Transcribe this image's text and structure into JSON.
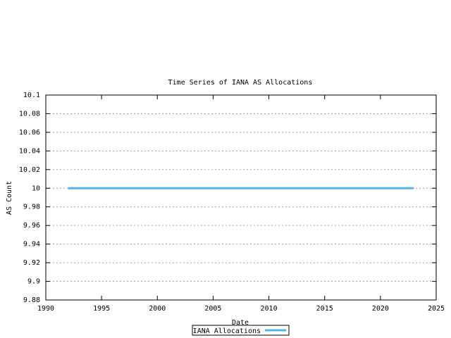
{
  "chart_data": {
    "type": "line",
    "title": "Time Series of IANA AS Allocations",
    "xlabel": "Date",
    "ylabel": "AS Count",
    "x": [
      1992,
      2023
    ],
    "series": [
      {
        "name": "IANA Allocations",
        "color": "#56b4e9",
        "values": [
          10,
          10
        ]
      }
    ],
    "xlim": [
      1990,
      2025
    ],
    "xticks": [
      1990,
      1995,
      2000,
      2005,
      2010,
      2015,
      2020,
      2025
    ],
    "ylim": [
      9.88,
      10.1
    ],
    "yticks": [
      9.88,
      9.9,
      9.92,
      9.94,
      9.96,
      9.98,
      10,
      10.02,
      10.04,
      10.06,
      10.08,
      10.1
    ],
    "grid": true,
    "legend": "bottom"
  }
}
